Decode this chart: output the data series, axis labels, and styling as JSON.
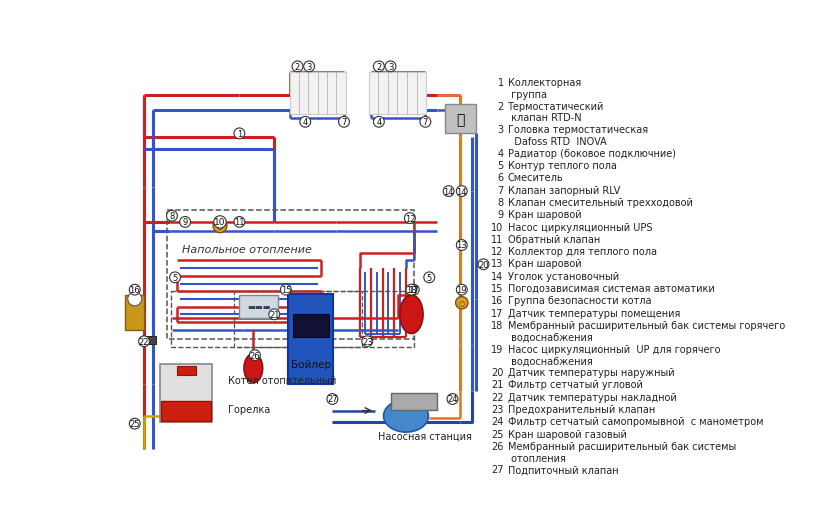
{
  "bg_color": "#f5f5f0",
  "pipe_red": "#cc2020",
  "pipe_blue": "#3355cc",
  "pipe_orange": "#dd7722",
  "pipe_dark_blue": "#2244aa",
  "pipe_yellow": "#ccaa00",
  "legend_items": [
    [
      1,
      "Коллекторная\n группа"
    ],
    [
      2,
      "Термостатический\n клапан RTD-N"
    ],
    [
      3,
      "Головка термостатическая\n  Dafoss RTD  INOVA"
    ],
    [
      4,
      "Радиатор (боковое подключние)"
    ],
    [
      5,
      "Контур теплого пола"
    ],
    [
      6,
      "Смеситель"
    ],
    [
      7,
      "Клапан запорный RLV"
    ],
    [
      8,
      "Клапан смесительный трехходовой"
    ],
    [
      9,
      "Кран шаровой"
    ],
    [
      10,
      "Насос циркуляционный UPS"
    ],
    [
      11,
      "Обратный клапан"
    ],
    [
      12,
      "Коллектор для теплого пола"
    ],
    [
      13,
      "Кран шаровой"
    ],
    [
      14,
      "Уголок установочный"
    ],
    [
      15,
      "Погодозависимая системая автоматики"
    ],
    [
      16,
      "Группа безопасности котла"
    ],
    [
      17,
      "Датчик температуры помещения"
    ],
    [
      18,
      "Мембранный расширительный бак системы горячего\n водоснабжения"
    ],
    [
      19,
      "Насос циркуляционный  UP для горячего\n водоснабжения"
    ],
    [
      20,
      "Датчик температуры наружный"
    ],
    [
      21,
      "Фильтр сетчатый угловой"
    ],
    [
      22,
      "Датчик температуры накладной"
    ],
    [
      23,
      "Предохранительный клапан"
    ],
    [
      24,
      "Фильтр сетчатый самопромывной  с манометром"
    ],
    [
      25,
      "Кран шаровой газовый"
    ],
    [
      26,
      "Мембранный расширительный бак системы\n отопления"
    ],
    [
      27,
      "Подпиточный клапан"
    ]
  ]
}
